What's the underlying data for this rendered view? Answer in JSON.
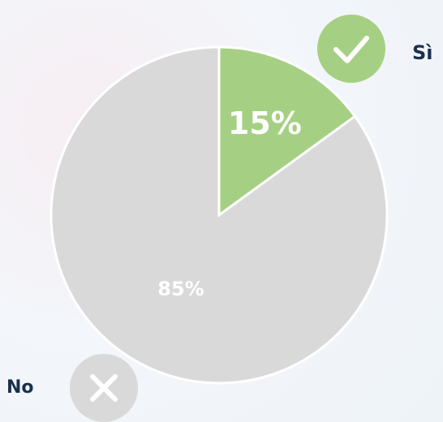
{
  "chart_data": {
    "type": "pie",
    "categories": [
      "Sì",
      "No"
    ],
    "values": [
      15,
      85
    ],
    "value_labels": [
      "15%",
      "85%"
    ],
    "colors": [
      "#a5d083",
      "#d9d9d9"
    ]
  }
}
